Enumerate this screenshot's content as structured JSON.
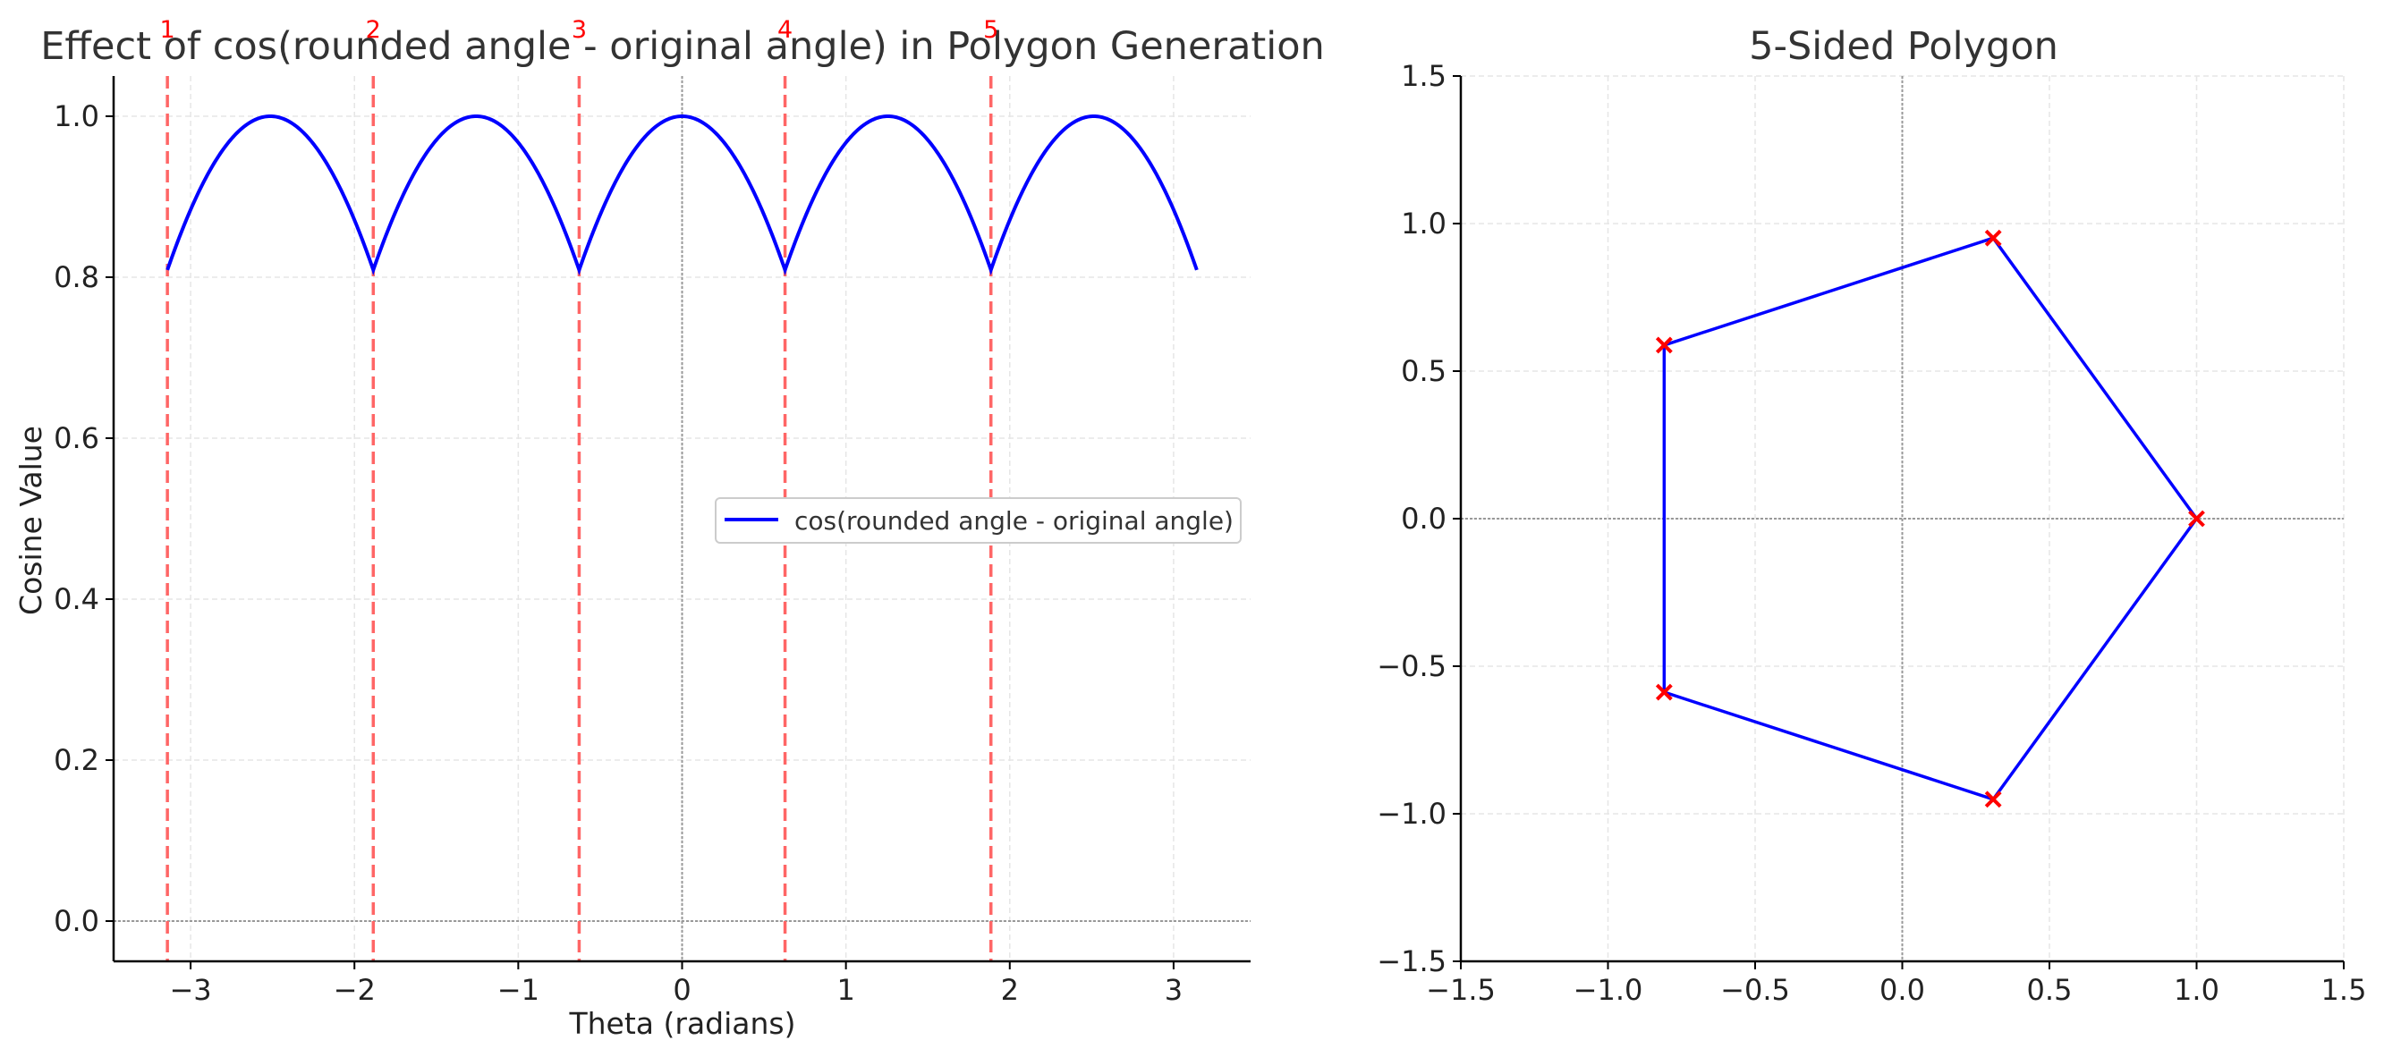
{
  "chart_data": [
    {
      "type": "line",
      "title": "Effect of cos(rounded angle - original angle) in Polygon Generation",
      "xlabel": "Theta (radians)",
      "ylabel": "Cosine Value",
      "xlim": [
        -3.47,
        3.47
      ],
      "ylim": [
        -0.05,
        1.05
      ],
      "xticks": [
        -3,
        -2,
        -1,
        0,
        1,
        2,
        3
      ],
      "xtick_labels": [
        "−3",
        "−2",
        "−1",
        "0",
        "1",
        "2",
        "3"
      ],
      "yticks": [
        0.0,
        0.2,
        0.4,
        0.6,
        0.8,
        1.0
      ],
      "ytick_labels": [
        "0.0",
        "0.2",
        "0.4",
        "0.6",
        "0.8",
        "1.0"
      ],
      "grid": true,
      "legend_position": "center-right",
      "series": [
        {
          "name": "cos(rounded angle - original angle)",
          "color": "#0000ff",
          "function": "cos(theta - round(theta / (2*pi/5)) * (2*pi/5))",
          "x_range": [
            -3.1416,
            3.1416
          ]
        }
      ],
      "vertical_markers": {
        "color": "#ff6666",
        "style": "dashed",
        "x": [
          -3.1416,
          -1.885,
          -0.6283,
          0.6283,
          1.885
        ],
        "labels": [
          "1",
          "2",
          "3",
          "4",
          "5"
        ],
        "label_color": "#ff0000"
      },
      "reference_lines": {
        "x0": 0,
        "y0": 0,
        "color": "#999999",
        "style": "dotted"
      }
    },
    {
      "type": "line",
      "title": "5-Sided Polygon",
      "xlabel": "",
      "ylabel": "",
      "xlim": [
        -1.5,
        1.5
      ],
      "ylim": [
        -1.5,
        1.5
      ],
      "xticks": [
        -1.5,
        -1.0,
        -0.5,
        0.0,
        0.5,
        1.0,
        1.5
      ],
      "xtick_labels": [
        "−1.5",
        "−1.0",
        "−0.5",
        "0.0",
        "0.5",
        "1.0",
        "1.5"
      ],
      "yticks": [
        -1.5,
        -1.0,
        -0.5,
        0.0,
        0.5,
        1.0,
        1.5
      ],
      "ytick_labels": [
        "−1.5",
        "−1.0",
        "−0.5",
        "0.0",
        "0.5",
        "1.0",
        "1.5"
      ],
      "grid": true,
      "series": [
        {
          "line_color": "#0000ff",
          "marker_color": "#ff0000",
          "marker": "x",
          "x": [
            1.0,
            0.309,
            -0.809,
            -0.809,
            0.309,
            1.0
          ],
          "y": [
            0.0,
            0.951,
            0.588,
            -0.588,
            -0.951,
            0.0
          ]
        }
      ],
      "reference_lines": {
        "x0": 0,
        "y0": 0,
        "color": "#999999",
        "style": "dotted"
      }
    }
  ]
}
